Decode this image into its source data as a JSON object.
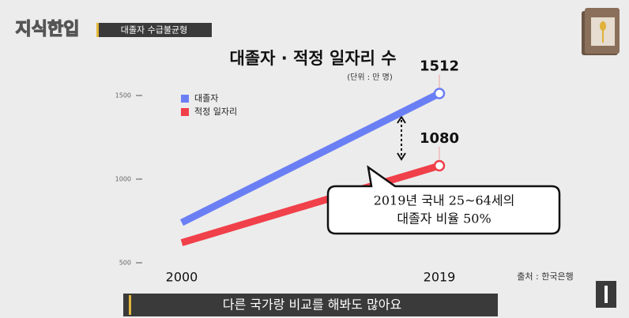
{
  "header": {
    "logo": "지식한입",
    "tag": "대졸자 수급불균형"
  },
  "caption": "다른 국가랑 비교를 해봐도 많아요",
  "chart_data": {
    "type": "line",
    "title": "대졸자 · 적정 일자리 수",
    "unit_note": "(단위 : 만 명)",
    "x": [
      2000,
      2019
    ],
    "xlim": [
      2000,
      2019
    ],
    "xticks": [
      2000,
      2019
    ],
    "ylim": [
      500,
      1500
    ],
    "yticks": [
      500,
      1000,
      1500
    ],
    "series": [
      {
        "name": "대졸자",
        "color": "#6b7ff5",
        "values": [
          740,
          1512
        ]
      },
      {
        "name": "적정 일자리",
        "color": "#f0404a",
        "values": [
          620,
          1080
        ]
      }
    ],
    "annotation": [
      "2019년 국내 25~64세의",
      "대졸자 비율 50%"
    ],
    "source": "출처 : 한국은행"
  }
}
